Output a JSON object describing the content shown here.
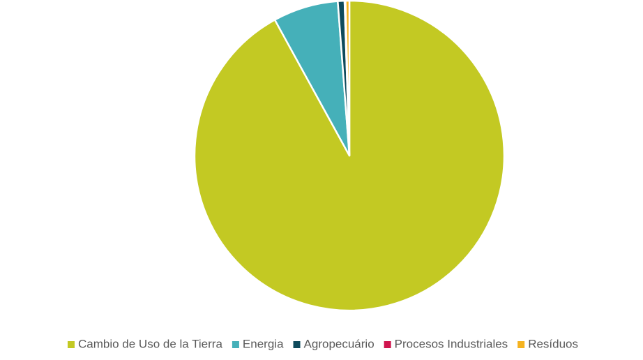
{
  "chart_data": {
    "type": "pie",
    "categories": [
      "Cambio de Uso de la Tierra",
      "Energia",
      "Agropecuário",
      "Procesos Industriales",
      "Resíduos"
    ],
    "values": [
      92.0,
      6.8,
      0.7,
      0.1,
      0.4
    ],
    "colors": [
      "#c3c923",
      "#45b0b9",
      "#0e4a5c",
      "#d0154e",
      "#f5b320"
    ],
    "legend": "bottom"
  }
}
